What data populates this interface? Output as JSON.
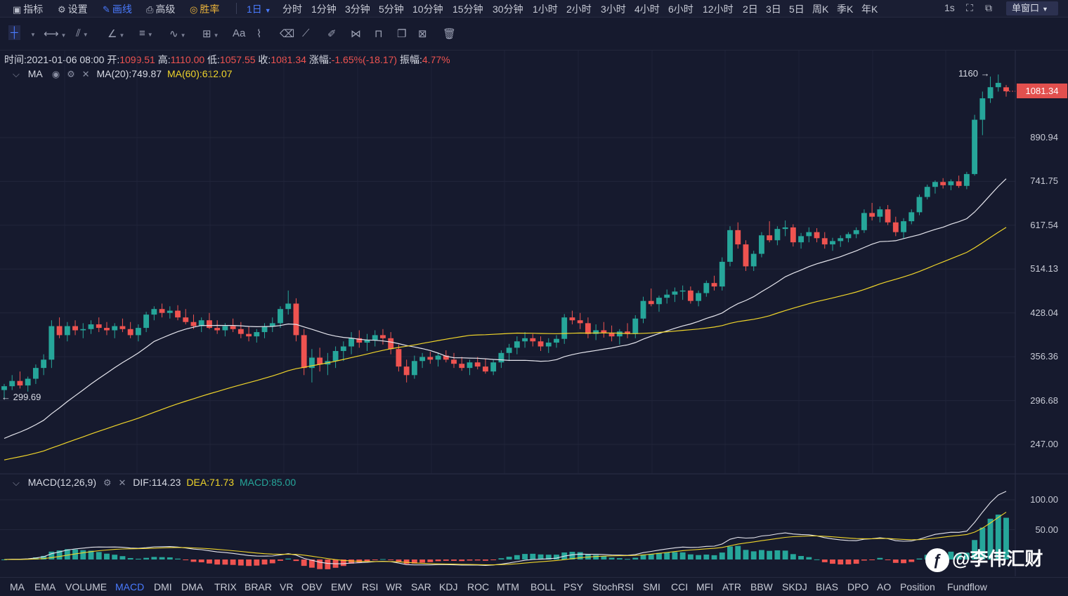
{
  "topbar": {
    "indicator": "指标",
    "settings": "设置",
    "draw": "画线",
    "advanced": "高级",
    "winrate": "胜率",
    "periods": [
      "1日",
      "分时",
      "1分钟",
      "3分钟",
      "5分钟",
      "10分钟",
      "15分钟",
      "30分钟",
      "1小时",
      "2小时",
      "3小时",
      "4小时",
      "6小时",
      "12小时",
      "2日",
      "3日",
      "5日",
      "周K",
      "季K",
      "年K"
    ],
    "interval": "1s",
    "window_mode": "单窗口"
  },
  "info": {
    "time_label": "时间:",
    "time": "2021-01-06 08:00",
    "open_label": "开:",
    "open": "1099.51",
    "high_label": "高:",
    "high": "1110.00",
    "low_label": "低:",
    "low": "1057.55",
    "close_label": "收:",
    "close": "1081.34",
    "change_label": "涨幅:",
    "change": "-1.65%(-18.17)",
    "amplitude_label": "振幅:",
    "amplitude": "4.77%"
  },
  "ma_legend": {
    "name": "MA",
    "ma20": "MA(20):749.87",
    "ma60": "MA(60):612.07"
  },
  "macd_legend": {
    "name": "MACD(12,26,9)",
    "dif": "DIF:114.23",
    "dea": "DEA:71.73",
    "macd": "MACD:85.00"
  },
  "price_axis": [
    "890.94",
    "741.75",
    "617.54",
    "514.13",
    "428.04",
    "356.36",
    "296.68",
    "247.00"
  ],
  "macd_axis": [
    "100.00",
    "50.00"
  ],
  "current_price": "1081.34",
  "high_annotation": "1160 →",
  "low_annotation": "← 299.69",
  "indicators": [
    "MA",
    "EMA",
    "VOLUME",
    "MACD",
    "DMI",
    "DMA",
    "TRIX",
    "BRAR",
    "VR",
    "OBV",
    "EMV",
    "RSI",
    "WR",
    "SAR",
    "KDJ",
    "ROC",
    "MTM",
    "BOLL",
    "PSY",
    "StochRSI",
    "SMI",
    "CCI",
    "MFI",
    "ATR",
    "BBW",
    "SKDJ",
    "BIAS",
    "DPO",
    "AO",
    "Position",
    "Fundflow"
  ],
  "selected_indicator": "MACD",
  "watermark": "@李伟汇财",
  "colors": {
    "up": "#26a69a",
    "down": "#ef5350",
    "ma20": "#e6e6ee",
    "ma60": "#f0d52a",
    "accent": "#4a7bff",
    "bg": "#161a2e"
  },
  "chart_data": {
    "type": "candlestick",
    "y_scale": "log",
    "price_axis_ticks": [
      247.0,
      296.68,
      356.36,
      428.04,
      514.13,
      617.54,
      741.75,
      890.94
    ],
    "ohlc": [
      [
        310,
        318,
        298,
        315
      ],
      [
        315,
        330,
        310,
        322
      ],
      [
        322,
        335,
        312,
        316
      ],
      [
        316,
        328,
        308,
        325
      ],
      [
        325,
        345,
        318,
        340
      ],
      [
        340,
        360,
        330,
        352
      ],
      [
        352,
        415,
        340,
        405
      ],
      [
        405,
        420,
        385,
        390
      ],
      [
        390,
        412,
        380,
        405
      ],
      [
        405,
        415,
        390,
        398
      ],
      [
        398,
        410,
        385,
        400
      ],
      [
        400,
        415,
        392,
        408
      ],
      [
        408,
        420,
        395,
        402
      ],
      [
        402,
        412,
        390,
        398
      ],
      [
        398,
        410,
        385,
        405
      ],
      [
        405,
        418,
        395,
        400
      ],
      [
        400,
        412,
        385,
        390
      ],
      [
        390,
        408,
        380,
        402
      ],
      [
        402,
        430,
        395,
        425
      ],
      [
        425,
        440,
        415,
        435
      ],
      [
        435,
        445,
        420,
        428
      ],
      [
        428,
        440,
        418,
        432
      ],
      [
        432,
        442,
        415,
        420
      ],
      [
        420,
        435,
        408,
        412
      ],
      [
        412,
        425,
        400,
        405
      ],
      [
        405,
        420,
        395,
        415
      ],
      [
        415,
        428,
        400,
        402
      ],
      [
        402,
        415,
        392,
        398
      ],
      [
        398,
        410,
        388,
        405
      ],
      [
        405,
        418,
        395,
        400
      ],
      [
        400,
        412,
        385,
        392
      ],
      [
        392,
        405,
        380,
        388
      ],
      [
        388,
        400,
        378,
        395
      ],
      [
        395,
        410,
        385,
        405
      ],
      [
        405,
        420,
        395,
        410
      ],
      [
        410,
        440,
        402,
        435
      ],
      [
        435,
        470,
        425,
        445
      ],
      [
        445,
        455,
        380,
        390
      ],
      [
        390,
        400,
        330,
        340
      ],
      [
        340,
        368,
        320,
        355
      ],
      [
        355,
        370,
        335,
        345
      ],
      [
        345,
        362,
        330,
        350
      ],
      [
        350,
        372,
        340,
        365
      ],
      [
        365,
        380,
        350,
        372
      ],
      [
        372,
        395,
        360,
        385
      ],
      [
        385,
        398,
        370,
        378
      ],
      [
        378,
        392,
        365,
        382
      ],
      [
        382,
        398,
        372,
        390
      ],
      [
        390,
        400,
        375,
        385
      ],
      [
        385,
        395,
        360,
        368
      ],
      [
        368,
        375,
        335,
        342
      ],
      [
        342,
        352,
        320,
        330
      ],
      [
        330,
        358,
        325,
        350
      ],
      [
        350,
        362,
        340,
        356
      ],
      [
        356,
        364,
        346,
        352
      ],
      [
        352,
        362,
        342,
        358
      ],
      [
        358,
        366,
        348,
        352
      ],
      [
        352,
        362,
        340,
        346
      ],
      [
        346,
        356,
        336,
        340
      ],
      [
        340,
        352,
        330,
        348
      ],
      [
        348,
        356,
        338,
        342
      ],
      [
        342,
        354,
        332,
        335
      ],
      [
        335,
        352,
        330,
        348
      ],
      [
        348,
        366,
        340,
        362
      ],
      [
        362,
        376,
        350,
        370
      ],
      [
        370,
        388,
        360,
        380
      ],
      [
        380,
        395,
        370,
        385
      ],
      [
        385,
        392,
        372,
        380
      ],
      [
        380,
        388,
        365,
        372
      ],
      [
        372,
        385,
        362,
        378
      ],
      [
        378,
        390,
        370,
        384
      ],
      [
        384,
        426,
        376,
        420
      ],
      [
        420,
        432,
        408,
        415
      ],
      [
        415,
        428,
        400,
        410
      ],
      [
        410,
        420,
        385,
        392
      ],
      [
        392,
        408,
        382,
        398
      ],
      [
        398,
        412,
        386,
        394
      ],
      [
        394,
        406,
        380,
        388
      ],
      [
        388,
        400,
        375,
        396
      ],
      [
        396,
        410,
        385,
        392
      ],
      [
        392,
        424,
        385,
        418
      ],
      [
        418,
        458,
        410,
        450
      ],
      [
        450,
        474,
        440,
        444
      ],
      [
        444,
        460,
        430,
        456
      ],
      [
        456,
        472,
        445,
        462
      ],
      [
        462,
        476,
        448,
        468
      ],
      [
        468,
        480,
        452,
        470
      ],
      [
        470,
        478,
        445,
        450
      ],
      [
        450,
        470,
        440,
        465
      ],
      [
        465,
        490,
        458,
        485
      ],
      [
        485,
        500,
        470,
        478
      ],
      [
        478,
        540,
        470,
        530
      ],
      [
        530,
        615,
        520,
        605
      ],
      [
        605,
        625,
        560,
        570
      ],
      [
        570,
        580,
        510,
        520
      ],
      [
        520,
        555,
        510,
        548
      ],
      [
        548,
        600,
        540,
        592
      ],
      [
        592,
        628,
        575,
        580
      ],
      [
        580,
        615,
        568,
        608
      ],
      [
        608,
        630,
        590,
        612
      ],
      [
        612,
        620,
        565,
        575
      ],
      [
        575,
        598,
        560,
        590
      ],
      [
        590,
        612,
        575,
        600
      ],
      [
        600,
        610,
        575,
        585
      ],
      [
        585,
        600,
        560,
        570
      ],
      [
        570,
        586,
        555,
        578
      ],
      [
        578,
        592,
        564,
        585
      ],
      [
        585,
        600,
        575,
        595
      ],
      [
        595,
        612,
        585,
        605
      ],
      [
        605,
        660,
        598,
        650
      ],
      [
        650,
        678,
        630,
        640
      ],
      [
        640,
        668,
        625,
        660
      ],
      [
        660,
        672,
        618,
        625
      ],
      [
        625,
        640,
        590,
        600
      ],
      [
        600,
        636,
        585,
        628
      ],
      [
        628,
        660,
        620,
        652
      ],
      [
        652,
        702,
        644,
        695
      ],
      [
        695,
        732,
        688,
        725
      ],
      [
        725,
        745,
        705,
        740
      ],
      [
        740,
        752,
        720,
        730
      ],
      [
        730,
        748,
        715,
        742
      ],
      [
        742,
        760,
        722,
        728
      ],
      [
        728,
        772,
        718,
        765
      ],
      [
        765,
        980,
        760,
        960
      ],
      [
        960,
        1080,
        900,
        1050
      ],
      [
        1050,
        1150,
        1030,
        1100
      ],
      [
        1100,
        1160,
        1080,
        1120
      ],
      [
        1099.51,
        1110.0,
        1057.55,
        1081.34
      ]
    ],
    "ma20_last": 749.87,
    "ma60_last": 612.07,
    "high_marker": 1160,
    "low_marker": 299.69,
    "macd_panel": {
      "dif": 114.23,
      "dea": 71.73,
      "macd": 85.0,
      "axis_ticks": [
        50.0,
        100.0
      ]
    }
  }
}
